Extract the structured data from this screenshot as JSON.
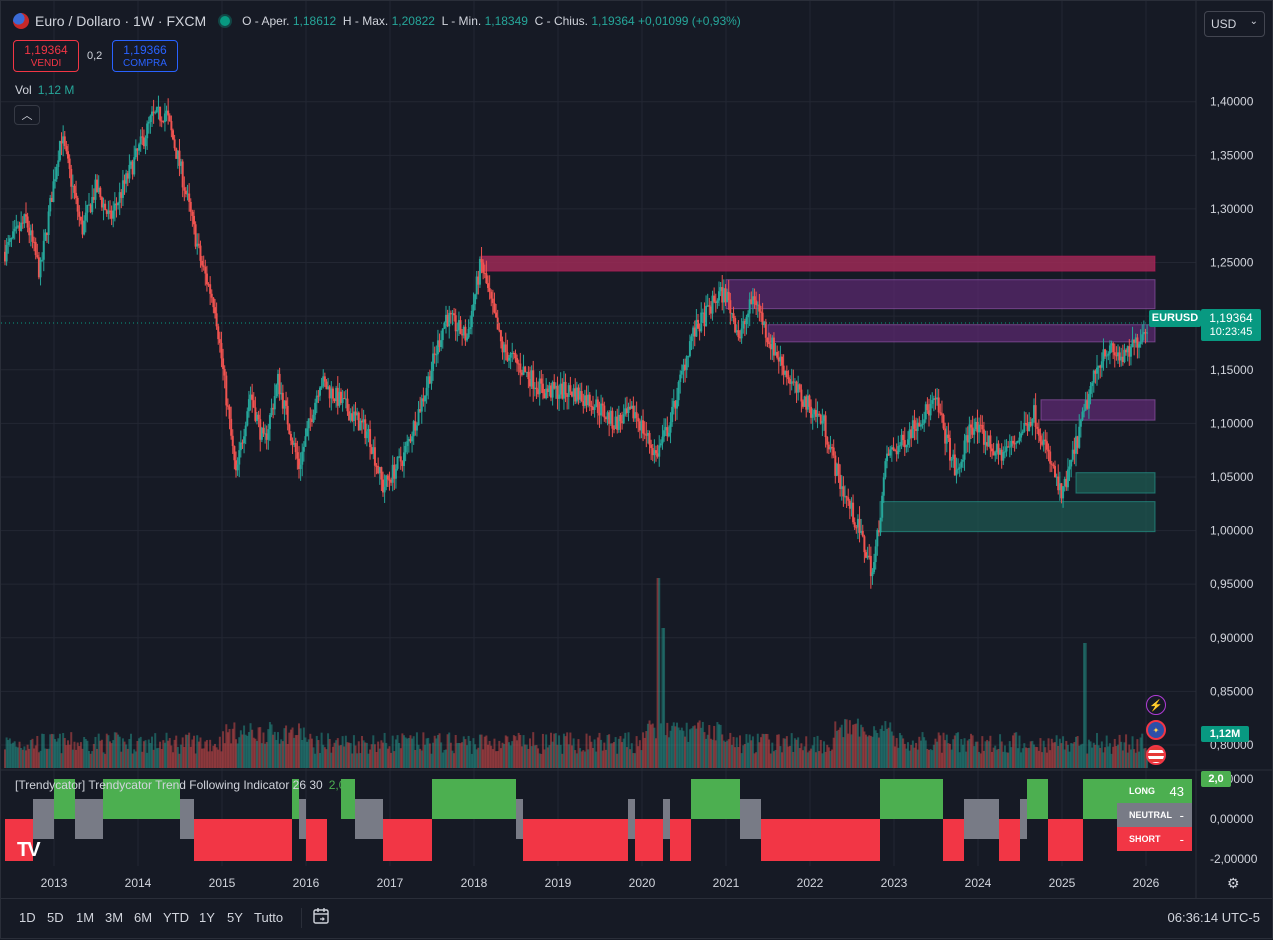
{
  "header": {
    "symbol": "Euro / Dollaro · 1W · FXCM",
    "open_label": "O - Aper.",
    "open": "1,18612",
    "high_label": "H - Max.",
    "high": "1,20822",
    "low_label": "L - Min.",
    "low": "1,18349",
    "close_label": "C - Chius.",
    "close": "1,19364",
    "change": "+0,01099 (+0,93%)"
  },
  "trade": {
    "sell_price": "1,19364",
    "sell_label": "VENDI",
    "spread": "0,2",
    "buy_price": "1,19366",
    "buy_label": "COMPRA"
  },
  "volume": {
    "label": "Vol",
    "value": "1,12 M",
    "badge": "1,12M"
  },
  "currency": {
    "selected": "USD"
  },
  "price_scale": {
    "ticks": [
      "1,40000",
      "1,35000",
      "1,30000",
      "1,25000",
      "1,20000",
      "1,15000",
      "1,10000",
      "1,05000",
      "1,00000",
      "0,95000",
      "0,90000",
      "0,85000",
      "0,80000"
    ],
    "ind_ticks": [
      "2,00000",
      "0,00000",
      "-2,00000"
    ]
  },
  "last_price": {
    "symbol": "EURUSD",
    "price": "1,19364",
    "countdown": "10:23:45"
  },
  "indicator": {
    "title": "[Trendycator] Trendycator Trend Following Indicator 26 30",
    "value": "2,0",
    "badge": "2,0",
    "table": [
      {
        "label": "LONG",
        "value": "43"
      },
      {
        "label": "NEUTRAL",
        "value": "-"
      },
      {
        "label": "SHORT",
        "value": "-"
      }
    ]
  },
  "time_axis": {
    "years": [
      "2013",
      "2014",
      "2015",
      "2016",
      "2017",
      "2018",
      "2019",
      "2020",
      "2021",
      "2022",
      "2023",
      "2024",
      "2025",
      "2026"
    ]
  },
  "bottom_bar": {
    "ranges": [
      "1D",
      "5D",
      "1M",
      "3M",
      "6M",
      "YTD",
      "1Y",
      "5Y",
      "Tutto"
    ],
    "clock": "06:36:14 UTC-5"
  },
  "logo": {
    "text": "TV"
  },
  "colors": {
    "background": "#161a25",
    "up": "#26a69a",
    "down": "#ef5350",
    "long": "#4caf50",
    "neutral": "#787b86",
    "short": "#f23645",
    "supply_zone": "#9c2a56",
    "purple_zone": "#5e2a72",
    "demand_zone": "#1e5b52"
  },
  "chart_data": {
    "type": "candlestick",
    "timeframe": "1W",
    "x_range": [
      "2012-06",
      "2026-02"
    ],
    "ylim": [
      0.8,
      1.41
    ],
    "anchors": [
      [
        "2012-06",
        1.26
      ],
      [
        "2012-09",
        1.29
      ],
      [
        "2012-11",
        1.24
      ],
      [
        "2013-02",
        1.37
      ],
      [
        "2013-05",
        1.28
      ],
      [
        "2013-07",
        1.32
      ],
      [
        "2013-09",
        1.29
      ],
      [
        "2014-03",
        1.385
      ],
      [
        "2014-05",
        1.39
      ],
      [
        "2014-07",
        1.34
      ],
      [
        "2014-10",
        1.25
      ],
      [
        "2014-12",
        1.21
      ],
      [
        "2015-03",
        1.05
      ],
      [
        "2015-05",
        1.13
      ],
      [
        "2015-07",
        1.08
      ],
      [
        "2015-09",
        1.14
      ],
      [
        "2015-12",
        1.06
      ],
      [
        "2016-03",
        1.14
      ],
      [
        "2016-06",
        1.12
      ],
      [
        "2016-10",
        1.09
      ],
      [
        "2016-12",
        1.04
      ],
      [
        "2017-03",
        1.07
      ],
      [
        "2017-06",
        1.13
      ],
      [
        "2017-09",
        1.2
      ],
      [
        "2017-12",
        1.18
      ],
      [
        "2018-02",
        1.25
      ],
      [
        "2018-05",
        1.17
      ],
      [
        "2018-08",
        1.15
      ],
      [
        "2018-11",
        1.13
      ],
      [
        "2019-03",
        1.13
      ],
      [
        "2019-06",
        1.12
      ],
      [
        "2019-09",
        1.1
      ],
      [
        "2019-12",
        1.11
      ],
      [
        "2020-03",
        1.07
      ],
      [
        "2020-05",
        1.1
      ],
      [
        "2020-08",
        1.18
      ],
      [
        "2020-12",
        1.22
      ],
      [
        "2021-01",
        1.22
      ],
      [
        "2021-03",
        1.18
      ],
      [
        "2021-05",
        1.22
      ],
      [
        "2021-07",
        1.18
      ],
      [
        "2021-11",
        1.13
      ],
      [
        "2022-03",
        1.1
      ],
      [
        "2022-05",
        1.05
      ],
      [
        "2022-08",
        1.0
      ],
      [
        "2022-10",
        0.96
      ],
      [
        "2022-12",
        1.07
      ],
      [
        "2023-02",
        1.08
      ],
      [
        "2023-04",
        1.1
      ],
      [
        "2023-07",
        1.12
      ],
      [
        "2023-10",
        1.05
      ],
      [
        "2023-12",
        1.1
      ],
      [
        "2024-04",
        1.07
      ],
      [
        "2024-06",
        1.08
      ],
      [
        "2024-09",
        1.11
      ],
      [
        "2025-01",
        1.03
      ],
      [
        "2025-03",
        1.08
      ],
      [
        "2025-05",
        1.13
      ],
      [
        "2025-07",
        1.17
      ],
      [
        "2025-10",
        1.16
      ],
      [
        "2026-01",
        1.19
      ]
    ],
    "zones": [
      {
        "name": "supply",
        "from": "2018-02",
        "to": "2026-01",
        "y1": 1.242,
        "y2": 1.256
      },
      {
        "name": "purple-top",
        "from": "2021-01",
        "to": "2026-01",
        "y1": 1.207,
        "y2": 1.234
      },
      {
        "name": "purple-mid",
        "from": "2021-07",
        "to": "2026-01",
        "y1": 1.176,
        "y2": 1.192
      },
      {
        "name": "purple-low",
        "from": "2024-10",
        "to": "2026-01",
        "y1": 1.103,
        "y2": 1.122
      },
      {
        "name": "demand-upper",
        "from": "2025-03",
        "to": "2026-01",
        "y1": 1.035,
        "y2": 1.054
      },
      {
        "name": "demand-lower",
        "from": "2022-11",
        "to": "2026-01",
        "y1": 0.999,
        "y2": 1.027
      }
    ],
    "trend_segments": [
      {
        "from": "2012-06",
        "to": "2012-10",
        "state": "short"
      },
      {
        "from": "2012-10",
        "to": "2013-01",
        "state": "neutral"
      },
      {
        "from": "2013-01",
        "to": "2013-04",
        "state": "long"
      },
      {
        "from": "2013-04",
        "to": "2013-08",
        "state": "neutral"
      },
      {
        "from": "2013-08",
        "to": "2014-07",
        "state": "long"
      },
      {
        "from": "2014-07",
        "to": "2014-09",
        "state": "neutral"
      },
      {
        "from": "2014-09",
        "to": "2015-11",
        "state": "short"
      },
      {
        "from": "2015-11",
        "to": "2015-12",
        "state": "long"
      },
      {
        "from": "2015-12",
        "to": "2016-01",
        "state": "neutral"
      },
      {
        "from": "2016-01",
        "to": "2016-04",
        "state": "short"
      },
      {
        "from": "2016-06",
        "to": "2016-08",
        "state": "long"
      },
      {
        "from": "2016-08",
        "to": "2016-12",
        "state": "neutral"
      },
      {
        "from": "2016-12",
        "to": "2017-07",
        "state": "short"
      },
      {
        "from": "2017-07",
        "to": "2018-07",
        "state": "long"
      },
      {
        "from": "2018-07",
        "to": "2018-08",
        "state": "neutral"
      },
      {
        "from": "2018-08",
        "to": "2019-11",
        "state": "short"
      },
      {
        "from": "2019-11",
        "to": "2019-12",
        "state": "neutral"
      },
      {
        "from": "2019-12",
        "to": "2020-04",
        "state": "short"
      },
      {
        "from": "2020-04",
        "to": "2020-05",
        "state": "neutral"
      },
      {
        "from": "2020-05",
        "to": "2020-08",
        "state": "short"
      },
      {
        "from": "2020-08",
        "to": "2021-03",
        "state": "long"
      },
      {
        "from": "2021-03",
        "to": "2021-06",
        "state": "neutral"
      },
      {
        "from": "2021-06",
        "to": "2022-11",
        "state": "short"
      },
      {
        "from": "2022-11",
        "to": "2023-08",
        "state": "long"
      },
      {
        "from": "2023-08",
        "to": "2023-11",
        "state": "short"
      },
      {
        "from": "2023-11",
        "to": "2024-04",
        "state": "neutral"
      },
      {
        "from": "2024-04",
        "to": "2024-07",
        "state": "short"
      },
      {
        "from": "2024-07",
        "to": "2024-08",
        "state": "neutral"
      },
      {
        "from": "2024-08",
        "to": "2024-11",
        "state": "long"
      },
      {
        "from": "2024-11",
        "to": "2025-04",
        "state": "short"
      },
      {
        "from": "2025-04",
        "to": "2026-01",
        "state": "long"
      }
    ]
  }
}
